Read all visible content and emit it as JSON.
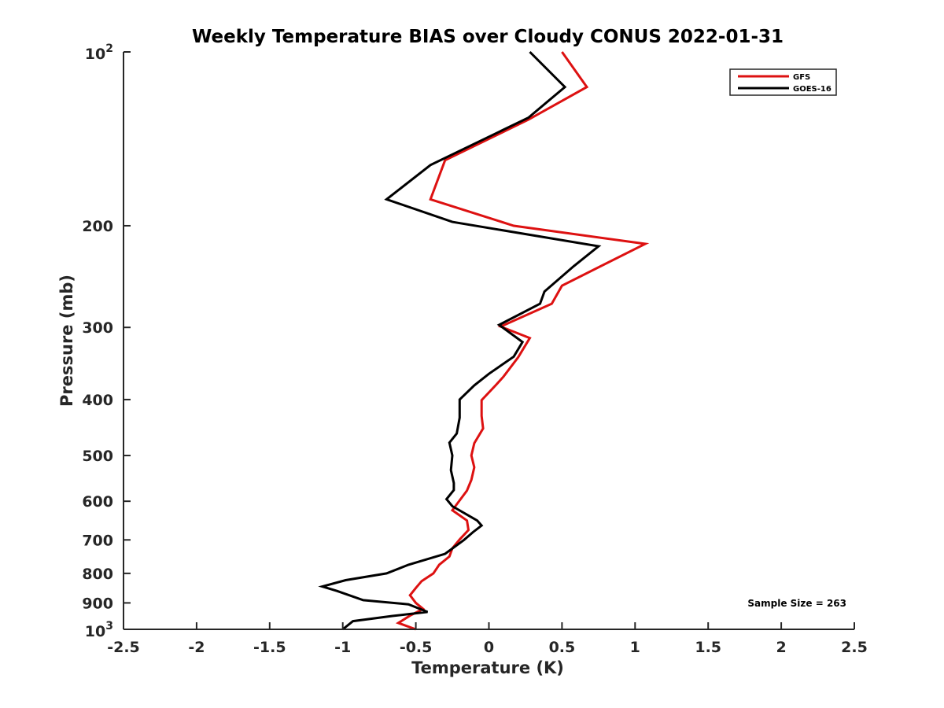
{
  "chart_data": {
    "type": "line",
    "title": "Weekly Temperature BIAS over Cloudy CONUS 2022-01-31",
    "xlabel": "Temperature (K)",
    "ylabel": "Pressure (mb)",
    "xlim": [
      -2.5,
      2.5
    ],
    "ylim": [
      1000,
      100
    ],
    "y_scale": "log",
    "x_ticks": [
      "-2.5",
      "-2",
      "-1.5",
      "-1",
      "-0.5",
      "0",
      "0.5",
      "1",
      "1.5",
      "2",
      "2.5"
    ],
    "y_tick_values": [
      100,
      200,
      300,
      400,
      500,
      600,
      700,
      800,
      900,
      1000
    ],
    "y_ticks_plain": [
      "200",
      "300",
      "400",
      "500",
      "600",
      "700",
      "800",
      "900"
    ],
    "y_tick_top": {
      "base": "10",
      "exp": "2"
    },
    "y_tick_bottom": {
      "base": "10",
      "exp": "3"
    },
    "legend_position": "top-right",
    "sample_size_text": "Sample Size = 263",
    "series": [
      {
        "name": "GFS",
        "color": "#dd1111",
        "points": [
          [
            0.5,
            100
          ],
          [
            0.67,
            115
          ],
          [
            0.27,
            131
          ],
          [
            -0.3,
            154
          ],
          [
            -0.4,
            180
          ],
          [
            0.17,
            200
          ],
          [
            1.07,
            215
          ],
          [
            0.5,
            254
          ],
          [
            0.43,
            273
          ],
          [
            0.08,
            299
          ],
          [
            0.28,
            313
          ],
          [
            0.2,
            338
          ],
          [
            0.1,
            365
          ],
          [
            0.05,
            377
          ],
          [
            -0.05,
            401
          ],
          [
            -0.05,
            427
          ],
          [
            -0.04,
            449
          ],
          [
            -0.1,
            476
          ],
          [
            -0.12,
            500
          ],
          [
            -0.1,
            524
          ],
          [
            -0.12,
            551
          ],
          [
            -0.15,
            575
          ],
          [
            -0.2,
            598
          ],
          [
            -0.25,
            622
          ],
          [
            -0.15,
            648
          ],
          [
            -0.14,
            673
          ],
          [
            -0.2,
            699
          ],
          [
            -0.25,
            724
          ],
          [
            -0.27,
            748
          ],
          [
            -0.34,
            773
          ],
          [
            -0.38,
            800
          ],
          [
            -0.46,
            825
          ],
          [
            -0.5,
            848
          ],
          [
            -0.54,
            873
          ],
          [
            -0.5,
            900
          ],
          [
            -0.45,
            922
          ],
          [
            -0.54,
            947
          ],
          [
            -0.62,
            975
          ],
          [
            -0.5,
            1000
          ]
        ]
      },
      {
        "name": "GOES-16",
        "color": "#000000",
        "points": [
          [
            0.28,
            100
          ],
          [
            0.52,
            115
          ],
          [
            0.27,
            130
          ],
          [
            -0.4,
            157
          ],
          [
            -0.7,
            180
          ],
          [
            -0.25,
            197
          ],
          [
            0.75,
            217
          ],
          [
            0.58,
            235
          ],
          [
            0.38,
            260
          ],
          [
            0.35,
            273
          ],
          [
            0.07,
            297
          ],
          [
            0.23,
            318
          ],
          [
            0.17,
            337
          ],
          [
            0.0,
            361
          ],
          [
            -0.1,
            378
          ],
          [
            -0.2,
            400
          ],
          [
            -0.2,
            430
          ],
          [
            -0.22,
            458
          ],
          [
            -0.27,
            475
          ],
          [
            -0.25,
            500
          ],
          [
            -0.26,
            530
          ],
          [
            -0.24,
            558
          ],
          [
            -0.24,
            574
          ],
          [
            -0.29,
            595
          ],
          [
            -0.25,
            612
          ],
          [
            -0.08,
            648
          ],
          [
            -0.05,
            661
          ],
          [
            -0.11,
            679
          ],
          [
            -0.17,
            700
          ],
          [
            -0.3,
            740
          ],
          [
            -0.55,
            773
          ],
          [
            -0.7,
            800
          ],
          [
            -0.98,
            822
          ],
          [
            -1.14,
            843
          ],
          [
            -1.04,
            858
          ],
          [
            -0.86,
            890
          ],
          [
            -0.55,
            905
          ],
          [
            -0.42,
            933
          ],
          [
            -0.66,
            948
          ],
          [
            -0.93,
            968
          ],
          [
            -1.0,
            1000
          ]
        ]
      }
    ]
  }
}
